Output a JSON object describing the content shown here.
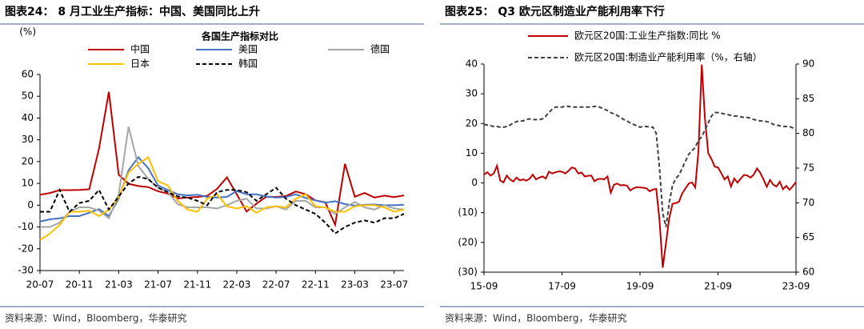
{
  "chart_data": [
    {
      "type": "line",
      "title": "图表24： 8 月工业生产指标：中国、美国同比上升",
      "ylabel": "(%)",
      "legend_title": "各国生产指标对比",
      "legend": "top",
      "source": "资料来源：Wind，Bloomberg，华泰研究",
      "categories": [
        "20-07",
        null,
        null,
        null,
        "20-11",
        null,
        null,
        null,
        "21-03",
        null,
        null,
        null,
        "21-07",
        null,
        null,
        null,
        "21-11",
        null,
        null,
        null,
        "22-03",
        null,
        null,
        null,
        "22-07",
        null,
        null,
        null,
        "22-11",
        null,
        null,
        null,
        "23-03",
        null,
        null,
        null,
        "23-07",
        null
      ],
      "ylim": [
        -30,
        60
      ],
      "yticks": [
        -30,
        -20,
        -10,
        0,
        10,
        20,
        30,
        40,
        50,
        60
      ],
      "series": [
        {
          "name": "中国",
          "color": "#c00000",
          "values": [
            4.8,
            5.6,
            6.9,
            6.9,
            7.0,
            7.3,
            26,
            52,
            14,
            9.8,
            8.8,
            8.3,
            6.4,
            5.3,
            3.1,
            3.5,
            3.8,
            4.3,
            7.5,
            12.8,
            5.0,
            -2.9,
            0.7,
            3.9,
            3.8,
            4.2,
            6.3,
            5.0,
            2.2,
            1.3,
            -9,
            19,
            3.9,
            5.6,
            3.5,
            4.4,
            3.7,
            4.5
          ]
        },
        {
          "name": "美国",
          "color": "#4472c4",
          "values": [
            -7.5,
            -6.5,
            -6,
            -5,
            -5,
            -3.5,
            -1.8,
            -5,
            3,
            16,
            22,
            17,
            9,
            7,
            5,
            4.5,
            4.8,
            3.8,
            3.5,
            3.8,
            6.5,
            5,
            5,
            4,
            3.5,
            3.8,
            5,
            3.3,
            2.2,
            1.2,
            1.8,
            0.5,
            -0.2,
            0.2,
            0.3,
            0,
            0,
            0.2
          ]
        },
        {
          "name": "德国",
          "color": "#a6a6a6",
          "values": [
            -10,
            -10,
            -8,
            -3,
            -1,
            -1,
            -2.5,
            -6,
            5,
            36,
            18,
            12,
            8,
            6,
            0.5,
            -1,
            -1,
            -1,
            -1.5,
            0,
            2,
            3,
            -1.5,
            -1.5,
            -0.5,
            -2,
            2,
            2,
            -1,
            -1,
            -4,
            -1,
            1.5,
            -1,
            -2,
            0,
            -1.5,
            -2
          ]
        },
        {
          "name": "日本",
          "color": "#ffc000",
          "values": [
            -16,
            -13,
            -9,
            -3,
            -3,
            -2.5,
            -5,
            -2,
            3.5,
            15,
            19,
            22,
            11,
            9,
            2,
            -2,
            -3,
            3,
            5,
            -0.5,
            -1.5,
            -0.5,
            -3.5,
            -1,
            -0.5,
            -1,
            3,
            5,
            -0.5,
            -1,
            -3,
            -3,
            -0.5,
            0,
            0,
            -1,
            -3,
            -2
          ]
        },
        {
          "name": "韩国",
          "color": "#000000",
          "dash": true,
          "values": [
            -3,
            -3,
            7,
            -3,
            1,
            2,
            7,
            -2,
            4,
            10,
            13,
            12,
            8,
            6,
            4,
            3.5,
            2,
            0,
            6,
            7,
            7,
            6,
            2,
            5,
            8,
            3,
            0,
            -2,
            -4,
            -8,
            -13,
            -10,
            -8,
            -7,
            -8,
            -6,
            -6,
            -4
          ]
        }
      ]
    },
    {
      "type": "line",
      "title": "图表25： Q3 欧元区制造业产能利用率下行",
      "legend": "top",
      "source": "资料来源：Wind，Bloomberg，华泰研究",
      "categories": [
        "15-09",
        null,
        null,
        null,
        null,
        null,
        null,
        null,
        null,
        null,
        null,
        null,
        null,
        null,
        null,
        null,
        null,
        null,
        null,
        null,
        null,
        null,
        null,
        null,
        "17-09",
        null,
        null,
        null,
        null,
        null,
        null,
        null,
        null,
        null,
        null,
        null,
        null,
        null,
        null,
        null,
        null,
        null,
        null,
        null,
        null,
        null,
        null,
        null,
        "19-09",
        null,
        null,
        null,
        null,
        null,
        null,
        null,
        null,
        null,
        null,
        null,
        null,
        null,
        null,
        null,
        null,
        null,
        null,
        null,
        null,
        null,
        null,
        null,
        "21-09",
        null,
        null,
        null,
        null,
        null,
        null,
        null,
        null,
        null,
        null,
        null,
        null,
        null,
        null,
        null,
        null,
        null,
        null,
        null,
        null,
        null,
        null,
        null,
        "23-09"
      ],
      "ylim": [
        -30,
        40
      ],
      "yticks": [
        {
          "value": -30,
          "label": "(30)"
        },
        {
          "value": -20,
          "label": "(20)"
        },
        {
          "value": -10,
          "label": "(10)"
        },
        0,
        10,
        20,
        30,
        40
      ],
      "y2lim": [
        60,
        90
      ],
      "y2ticks": [
        60,
        65,
        70,
        75,
        80,
        85,
        90
      ],
      "series": [
        {
          "name": "欧元区20国:工业生产指数:同比 %",
          "color": "#c00000",
          "values": [
            2.8,
            3.6,
            2.5,
            3.2,
            5.8,
            0.8,
            0.2,
            2.5,
            1.2,
            0.5,
            1.8,
            0.9,
            1.2,
            0.8,
            1.4,
            2.8,
            1.2,
            1.8,
            2.2,
            1.5,
            3.8,
            3.2,
            3.6,
            3.9,
            3.8,
            3.2,
            4.1,
            5.2,
            4.9,
            3.2,
            3.5,
            2.2,
            2.4,
            2.5,
            0.6,
            1.3,
            1.4,
            1.2,
            2.2,
            -3.3,
            -0.6,
            -0.2,
            -0.8,
            -0.7,
            -0.9,
            -2.5,
            -1.8,
            -1.4,
            -1.5,
            -1.6,
            -1.8,
            -2.8,
            -2.2,
            -2.0,
            -12.5,
            -28.5,
            -20.2,
            -11.8,
            -7.0,
            -6.8,
            -6.3,
            -3.5,
            -1.8,
            -0.2,
            0.2,
            -1.5,
            11.0,
            39.8,
            21.5,
            10.0,
            8.0,
            5.5,
            5.2,
            3.3,
            1.2,
            2.2,
            -1.2,
            1.5,
            0.1,
            1.5,
            2.7,
            2.5,
            1.8,
            2.8,
            4.9,
            3.4,
            1.2,
            -1.3,
            1.0,
            -0.6,
            -1.2,
            0.4,
            -2.1,
            -1.0,
            -2.3,
            -1.1,
            0.3
          ]
        },
        {
          "name": "欧元区20国:制造业产能利用率（%，右轴）",
          "color": "#404040",
          "dash": true,
          "axis": "y2",
          "values": [
            81.3,
            81.2,
            81.1,
            81.0,
            81.0,
            80.9,
            80.9,
            81.0,
            81.2,
            81.5,
            81.7,
            81.8,
            81.8,
            82.0,
            82.1,
            82.0,
            82.0,
            82.0,
            82.1,
            82.5,
            83.0,
            83.5,
            83.8,
            83.8,
            83.8,
            83.9,
            83.9,
            83.8,
            83.8,
            83.8,
            83.8,
            83.8,
            83.8,
            83.8,
            83.9,
            83.9,
            83.7,
            83.5,
            83.3,
            83.0,
            82.8,
            82.6,
            82.3,
            82.0,
            81.8,
            81.5,
            81.3,
            81.1,
            80.9,
            81.0,
            81.0,
            80.9,
            80.9,
            80.0,
            75.0,
            68.5,
            66.5,
            70.0,
            72.5,
            73.5,
            74.0,
            75.0,
            76.0,
            77.0,
            77.5,
            78.0,
            79.0,
            79.5,
            80.5,
            81.5,
            82.5,
            83.0,
            83.0,
            82.9,
            82.8,
            82.7,
            82.6,
            82.5,
            82.5,
            82.4,
            82.3,
            82.3,
            82.2,
            82.0,
            81.9,
            81.8,
            81.8,
            81.7,
            81.6,
            81.3,
            81.2,
            81.1,
            81.0,
            81.0,
            81.0,
            80.8,
            80.5
          ]
        }
      ]
    }
  ]
}
